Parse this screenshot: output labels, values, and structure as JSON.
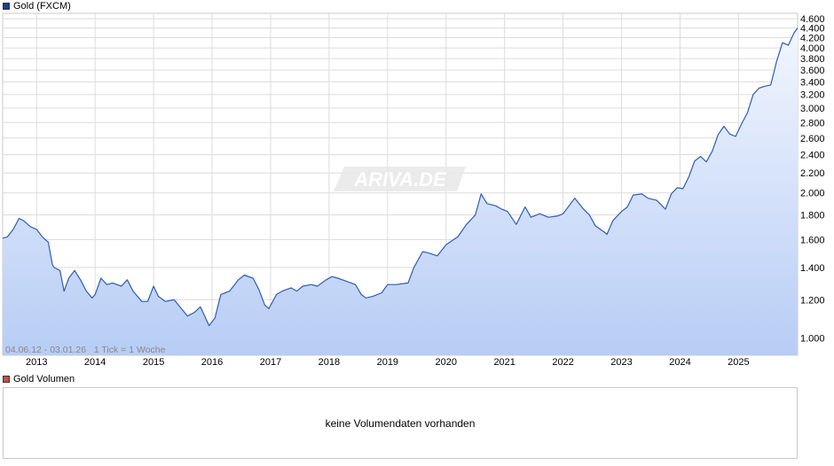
{
  "main_legend": {
    "label": "Gold (FXCM)",
    "color": "#1a3f8f"
  },
  "volume_legend": {
    "label": "Gold Volumen",
    "color": "#c0504d"
  },
  "volume_panel": {
    "message": "keine Volumendaten vorhanden"
  },
  "period_info": "04.06.12 - 03.01.26   1 Tick = 1 Woche",
  "watermark": "ARIVA.DE",
  "chart_data": {
    "type": "area",
    "title": "Gold (FXCM)",
    "line_color": "#2e5cb8",
    "fill_top": "#f2f6fe",
    "fill_bottom": "#b7cdf5",
    "y_scale": "log",
    "ylim": [
      920,
      4720
    ],
    "xlim": [
      2012.42,
      2026.01
    ],
    "y_ticks": [
      1000,
      1200,
      1400,
      1600,
      1800,
      2000,
      2200,
      2400,
      2600,
      2800,
      3000,
      3200,
      3400,
      3600,
      3800,
      4000,
      4200,
      4400,
      4600
    ],
    "y_tick_labels": [
      "1.000",
      "1.200",
      "1.400",
      "1.600",
      "1.800",
      "2.000",
      "2.200",
      "2.400",
      "2.600",
      "2.800",
      "3.000",
      "3.200",
      "3.400",
      "3.600",
      "3.800",
      "4.000",
      "4.200",
      "4.400",
      "4.600"
    ],
    "x_ticks": [
      2013,
      2014,
      2015,
      2016,
      2017,
      2018,
      2019,
      2020,
      2021,
      2022,
      2023,
      2024,
      2025
    ],
    "x_tick_labels": [
      "2013",
      "2014",
      "2015",
      "2016",
      "2017",
      "2018",
      "2019",
      "2020",
      "2021",
      "2022",
      "2023",
      "2024",
      "2025"
    ],
    "grid": true,
    "series": [
      {
        "x": [
          2012.42,
          2012.5,
          2012.6,
          2012.7,
          2012.78,
          2012.9,
          2013.0,
          2013.1,
          2013.2,
          2013.27,
          2013.3,
          2013.4,
          2013.47,
          2013.55,
          2013.65,
          2013.75,
          2013.85,
          2013.95,
          2014.0,
          2014.1,
          2014.2,
          2014.3,
          2014.45,
          2014.55,
          2014.65,
          2014.8,
          2014.9,
          2015.0,
          2015.08,
          2015.2,
          2015.35,
          2015.5,
          2015.58,
          2015.7,
          2015.8,
          2015.95,
          2016.05,
          2016.15,
          2016.3,
          2016.45,
          2016.55,
          2016.7,
          2016.8,
          2016.9,
          2016.97,
          2017.1,
          2017.2,
          2017.35,
          2017.45,
          2017.55,
          2017.7,
          2017.8,
          2017.95,
          2018.05,
          2018.15,
          2018.3,
          2018.45,
          2018.55,
          2018.63,
          2018.75,
          2018.9,
          2019.0,
          2019.15,
          2019.35,
          2019.45,
          2019.6,
          2019.7,
          2019.85,
          2020.0,
          2020.1,
          2020.2,
          2020.35,
          2020.5,
          2020.6,
          2020.7,
          2020.85,
          2020.95,
          2021.05,
          2021.2,
          2021.35,
          2021.45,
          2021.6,
          2021.75,
          2021.9,
          2022.0,
          2022.2,
          2022.35,
          2022.45,
          2022.55,
          2022.7,
          2022.75,
          2022.85,
          2023.0,
          2023.1,
          2023.2,
          2023.35,
          2023.45,
          2023.6,
          2023.75,
          2023.85,
          2023.95,
          2024.05,
          2024.15,
          2024.25,
          2024.35,
          2024.45,
          2024.55,
          2024.65,
          2024.75,
          2024.85,
          2024.95,
          2025.05,
          2025.15,
          2025.25,
          2025.35,
          2025.45,
          2025.55,
          2025.65,
          2025.75,
          2025.85,
          2025.95,
          2026.01
        ],
        "y": [
          1610,
          1620,
          1680,
          1770,
          1750,
          1700,
          1680,
          1620,
          1580,
          1420,
          1400,
          1380,
          1250,
          1330,
          1380,
          1320,
          1250,
          1210,
          1230,
          1330,
          1290,
          1300,
          1280,
          1320,
          1250,
          1190,
          1190,
          1280,
          1220,
          1190,
          1200,
          1140,
          1110,
          1130,
          1160,
          1060,
          1100,
          1230,
          1250,
          1320,
          1350,
          1330,
          1260,
          1170,
          1150,
          1230,
          1250,
          1270,
          1250,
          1280,
          1290,
          1280,
          1320,
          1340,
          1330,
          1310,
          1290,
          1230,
          1210,
          1220,
          1240,
          1290,
          1290,
          1300,
          1400,
          1510,
          1500,
          1480,
          1560,
          1590,
          1620,
          1720,
          1800,
          1990,
          1900,
          1880,
          1850,
          1830,
          1720,
          1870,
          1780,
          1810,
          1780,
          1790,
          1810,
          1950,
          1850,
          1800,
          1710,
          1660,
          1640,
          1750,
          1830,
          1870,
          1980,
          1990,
          1950,
          1930,
          1850,
          1990,
          2050,
          2040,
          2160,
          2330,
          2380,
          2320,
          2440,
          2640,
          2750,
          2650,
          2620,
          2780,
          2930,
          3200,
          3300,
          3330,
          3350,
          3750,
          4100,
          4050,
          4300,
          4400
        ]
      }
    ]
  }
}
